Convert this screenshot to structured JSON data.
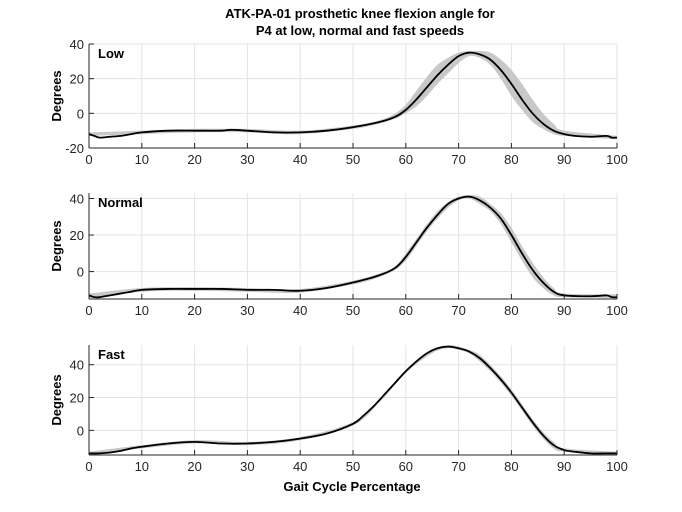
{
  "figure": {
    "title_line1": "ATK-PA-01 prosthetic knee flexion angle for",
    "title_line2": "P4 at low, normal and fast speeds",
    "xlabel": "Gait Cycle Percentage"
  },
  "chart_data": [
    {
      "type": "line",
      "title": "Low",
      "xlabel": "",
      "ylabel": "Degrees",
      "xlim": [
        0,
        100
      ],
      "ylim": [
        -20,
        40
      ],
      "xticks": [
        0,
        10,
        20,
        30,
        40,
        50,
        60,
        70,
        80,
        90,
        100
      ],
      "yticks": [
        -20,
        0,
        20,
        40
      ],
      "grid": true,
      "series": [
        {
          "role": "mean",
          "color": "#000000",
          "x": [
            0,
            1,
            2,
            4,
            6,
            8,
            10,
            15,
            20,
            25,
            27,
            30,
            35,
            40,
            45,
            50,
            55,
            58,
            60,
            62,
            64,
            66,
            68,
            70,
            72,
            74,
            76,
            78,
            80,
            82,
            84,
            86,
            88,
            90,
            92,
            95,
            98,
            99,
            100
          ],
          "y": [
            -12,
            -13,
            -14,
            -13.5,
            -13,
            -12,
            -11,
            -10,
            -10,
            -10,
            -9.5,
            -10,
            -11,
            -11,
            -10,
            -8,
            -5,
            -2,
            2,
            8,
            15,
            22,
            28,
            33,
            35,
            34,
            31,
            25,
            17,
            8,
            0,
            -6,
            -10,
            -12,
            -13,
            -13.5,
            -13,
            -14,
            -14
          ]
        },
        {
          "role": "band",
          "color": "#c8c8c8",
          "x": [
            0,
            10,
            20,
            30,
            40,
            50,
            55,
            58,
            60,
            62,
            64,
            66,
            68,
            70,
            72,
            74,
            76,
            78,
            80,
            82,
            84,
            86,
            88,
            90,
            100
          ],
          "upper": [
            -11,
            -10,
            -9,
            -9,
            -10,
            -7,
            -4,
            0,
            5,
            13,
            21,
            28,
            32,
            35,
            36,
            36,
            35,
            31,
            25,
            17,
            8,
            0,
            -6,
            -10,
            -13
          ],
          "lower": [
            -13,
            -12,
            -11,
            -11,
            -12,
            -9,
            -6,
            -3,
            0,
            4,
            10,
            17,
            23,
            29,
            33,
            32,
            28,
            20,
            10,
            2,
            -5,
            -9,
            -12,
            -13,
            -15
          ]
        }
      ]
    },
    {
      "type": "line",
      "title": "Normal",
      "xlabel": "",
      "ylabel": "Degrees",
      "xlim": [
        0,
        100
      ],
      "ylim": [
        -15,
        43
      ],
      "xticks": [
        0,
        10,
        20,
        30,
        40,
        50,
        60,
        70,
        80,
        90,
        100
      ],
      "yticks": [
        0,
        20,
        40
      ],
      "grid": true,
      "series": [
        {
          "role": "mean",
          "color": "#000000",
          "x": [
            0,
            1,
            2,
            4,
            6,
            8,
            10,
            15,
            20,
            25,
            30,
            35,
            40,
            45,
            50,
            55,
            58,
            60,
            62,
            64,
            66,
            68,
            70,
            72,
            74,
            76,
            78,
            80,
            82,
            84,
            86,
            88,
            90,
            95,
            98,
            99,
            100
          ],
          "y": [
            -13,
            -14,
            -14,
            -13,
            -12,
            -11,
            -10,
            -9.5,
            -9.5,
            -9.5,
            -10,
            -10,
            -10.5,
            -9,
            -6,
            -2,
            2,
            8,
            16,
            24,
            31,
            37,
            40,
            41,
            39,
            35,
            29,
            20,
            10,
            1,
            -6,
            -11,
            -13,
            -13.5,
            -13,
            -14,
            -14
          ]
        },
        {
          "role": "band",
          "color": "#c8c8c8",
          "x": [
            0,
            10,
            20,
            30,
            40,
            50,
            55,
            58,
            60,
            62,
            64,
            66,
            68,
            70,
            72,
            74,
            76,
            78,
            80,
            82,
            84,
            86,
            88,
            90,
            100
          ],
          "upper": [
            -12,
            -9,
            -8.5,
            -9,
            -9.5,
            -5,
            -1,
            3,
            10,
            18,
            26,
            33,
            38,
            41,
            42,
            41,
            37,
            32,
            24,
            14,
            5,
            -3,
            -9,
            -12,
            -12.5
          ],
          "lower": [
            -14.5,
            -11,
            -10.5,
            -11,
            -11.5,
            -7,
            -3,
            1,
            6,
            14,
            22,
            29,
            35,
            39,
            40,
            37,
            33,
            26,
            16,
            6,
            -3,
            -9,
            -13,
            -14,
            -14.5
          ]
        }
      ]
    },
    {
      "type": "line",
      "title": "Fast",
      "xlabel": "Gait Cycle Percentage",
      "ylabel": "Degrees",
      "xlim": [
        0,
        100
      ],
      "ylim": [
        -15,
        52
      ],
      "xticks": [
        0,
        10,
        20,
        30,
        40,
        50,
        60,
        70,
        80,
        90,
        100
      ],
      "yticks": [
        0,
        20,
        40
      ],
      "grid": true,
      "series": [
        {
          "role": "mean",
          "color": "#000000",
          "x": [
            0,
            2,
            4,
            6,
            8,
            10,
            15,
            20,
            25,
            30,
            35,
            40,
            45,
            50,
            52,
            54,
            56,
            58,
            60,
            62,
            64,
            66,
            68,
            70,
            72,
            74,
            76,
            78,
            80,
            82,
            84,
            86,
            88,
            90,
            92,
            95,
            98,
            100
          ],
          "y": [
            -14,
            -14,
            -13.5,
            -12.5,
            -11,
            -10,
            -8,
            -7,
            -8,
            -8,
            -7,
            -5,
            -2,
            4,
            9,
            15,
            22,
            29,
            36,
            42,
            47,
            50,
            51,
            50,
            48,
            44,
            38,
            31,
            23,
            14,
            5,
            -3,
            -9,
            -12,
            -13,
            -14,
            -14,
            -14
          ]
        },
        {
          "role": "band",
          "color": "#c8c8c8",
          "x": [
            0,
            10,
            20,
            30,
            40,
            50,
            55,
            60,
            65,
            68,
            70,
            72,
            74,
            76,
            78,
            80,
            82,
            84,
            86,
            88,
            90,
            100
          ],
          "upper": [
            -13,
            -9,
            -6,
            -7,
            -4,
            5,
            19,
            37,
            49,
            52,
            51,
            49,
            46,
            40,
            33,
            25,
            16,
            7,
            -1,
            -7,
            -11,
            -13
          ],
          "lower": [
            -15,
            -11,
            -8,
            -9,
            -6,
            3,
            17,
            35,
            47,
            50,
            49,
            47,
            42,
            36,
            29,
            21,
            12,
            3,
            -5,
            -11,
            -13,
            -15
          ]
        }
      ]
    }
  ]
}
